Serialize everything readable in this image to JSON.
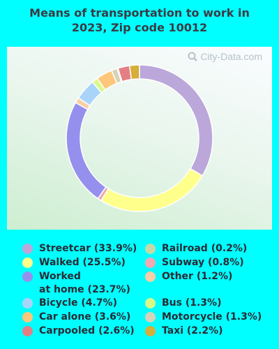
{
  "title": "Means of transportation to work in\n2023, Zip code 10012",
  "watermark": "City-Data.com",
  "chart_data": {
    "type": "pie",
    "variant": "donut",
    "slices": [
      {
        "label": "Streetcar",
        "value": 33.9,
        "color": "#bba7da"
      },
      {
        "label": "Walked",
        "value": 25.5,
        "color": "#ffff8c"
      },
      {
        "label": "Subway",
        "value": 0.8,
        "color": "#f0a9b0"
      },
      {
        "label": "Worked at home",
        "value": 23.7,
        "color": "#9590ee"
      },
      {
        "label": "Other",
        "value": 1.2,
        "color": "#f8cfa7"
      },
      {
        "label": "Bicycle",
        "value": 4.7,
        "color": "#a9d4fa"
      },
      {
        "label": "Bus",
        "value": 1.3,
        "color": "#d9f98b"
      },
      {
        "label": "Car alone",
        "value": 3.6,
        "color": "#fcc77a"
      },
      {
        "label": "Motorcycle",
        "value": 1.3,
        "color": "#d7d3b8"
      },
      {
        "label": "Railroad",
        "value": 0.2,
        "color": "#c6d8a8"
      },
      {
        "label": "Carpooled",
        "value": 2.6,
        "color": "#e57f86"
      },
      {
        "label": "Taxi",
        "value": 2.2,
        "color": "#d6ae38"
      }
    ]
  },
  "legend": {
    "left": [
      {
        "text": "Streetcar (33.9%)",
        "color": "#bba7da"
      },
      {
        "text": "Walked (25.5%)",
        "color": "#ffff8c"
      },
      {
        "text": "Worked\nat home (23.7%)",
        "color": "#9590ee"
      },
      {
        "text": "Bicycle (4.7%)",
        "color": "#a9d4fa"
      },
      {
        "text": "Car alone (3.6%)",
        "color": "#fcc77a"
      },
      {
        "text": "Carpooled (2.6%)",
        "color": "#e57f86"
      }
    ],
    "right": [
      {
        "text": "Railroad (0.2%)",
        "color": "#c6d8a8"
      },
      {
        "text": "Subway (0.8%)",
        "color": "#f0a9b0"
      },
      {
        "text": "Other (1.2%)",
        "color": "#f8cfa7"
      },
      {
        "text": "Bus (1.3%)",
        "color": "#d9f98b"
      },
      {
        "text": "Motorcycle (1.3%)",
        "color": "#d7d3b8"
      },
      {
        "text": "Taxi (2.2%)",
        "color": "#d6ae38"
      }
    ]
  }
}
